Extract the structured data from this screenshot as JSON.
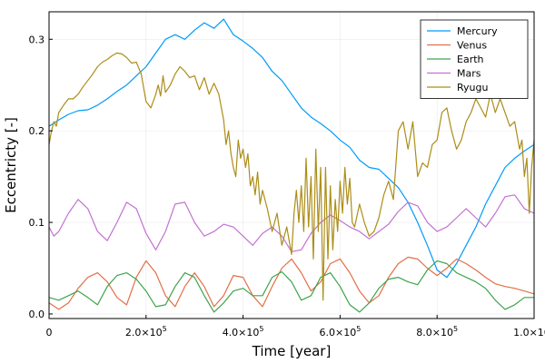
{
  "chart_data": {
    "type": "line",
    "xlabel": "Time [year]",
    "ylabel": "Eccentricty [-]",
    "xlim": [
      0,
      1000000
    ],
    "ylim": [
      -0.005,
      0.33
    ],
    "grid": true,
    "legend_position": "top-right",
    "x_ticks": [
      {
        "value": 0,
        "mant": "0",
        "exp": ""
      },
      {
        "value": 200000,
        "mant": "2.0×10",
        "exp": "5"
      },
      {
        "value": 400000,
        "mant": "4.0×10",
        "exp": "5"
      },
      {
        "value": 600000,
        "mant": "6.0×10",
        "exp": "5"
      },
      {
        "value": 800000,
        "mant": "8.0×10",
        "exp": "5"
      },
      {
        "value": 1000000,
        "mant": "1.0×10",
        "exp": "6"
      }
    ],
    "y_ticks": [
      {
        "value": 0.0,
        "label": "0.0"
      },
      {
        "value": 0.1,
        "label": "0.1"
      },
      {
        "value": 0.2,
        "label": "0.2"
      },
      {
        "value": 0.3,
        "label": "0.3"
      }
    ],
    "series": [
      {
        "name": "Mercury",
        "color": "#009af9",
        "x": [
          0,
          20000,
          40000,
          60000,
          80000,
          100000,
          120000,
          140000,
          160000,
          180000,
          200000,
          220000,
          240000,
          260000,
          280000,
          300000,
          320000,
          340000,
          360000,
          380000,
          400000,
          420000,
          440000,
          460000,
          480000,
          500000,
          520000,
          540000,
          560000,
          580000,
          600000,
          620000,
          640000,
          660000,
          680000,
          700000,
          720000,
          740000,
          760000,
          780000,
          800000,
          820000,
          840000,
          860000,
          880000,
          900000,
          920000,
          940000,
          960000,
          980000,
          1000000
        ],
        "y": [
          0.205,
          0.212,
          0.218,
          0.222,
          0.223,
          0.228,
          0.235,
          0.243,
          0.25,
          0.26,
          0.27,
          0.285,
          0.3,
          0.305,
          0.3,
          0.31,
          0.318,
          0.312,
          0.322,
          0.305,
          0.298,
          0.29,
          0.28,
          0.265,
          0.255,
          0.24,
          0.225,
          0.215,
          0.208,
          0.2,
          0.19,
          0.182,
          0.168,
          0.16,
          0.158,
          0.148,
          0.138,
          0.122,
          0.1,
          0.075,
          0.048,
          0.04,
          0.055,
          0.075,
          0.095,
          0.12,
          0.14,
          0.16,
          0.17,
          0.178,
          0.185
        ]
      },
      {
        "name": "Venus",
        "color": "#e26f46",
        "x": [
          0,
          20000,
          40000,
          60000,
          80000,
          100000,
          120000,
          140000,
          160000,
          180000,
          200000,
          220000,
          240000,
          260000,
          280000,
          300000,
          320000,
          340000,
          360000,
          380000,
          400000,
          420000,
          440000,
          460000,
          480000,
          500000,
          520000,
          540000,
          560000,
          580000,
          600000,
          620000,
          640000,
          660000,
          680000,
          700000,
          720000,
          740000,
          760000,
          780000,
          800000,
          820000,
          840000,
          860000,
          880000,
          900000,
          920000,
          940000,
          960000,
          980000,
          1000000
        ],
        "y": [
          0.012,
          0.005,
          0.012,
          0.028,
          0.04,
          0.045,
          0.035,
          0.018,
          0.01,
          0.04,
          0.058,
          0.045,
          0.02,
          0.008,
          0.03,
          0.045,
          0.03,
          0.008,
          0.02,
          0.042,
          0.04,
          0.02,
          0.008,
          0.03,
          0.05,
          0.06,
          0.045,
          0.025,
          0.035,
          0.055,
          0.06,
          0.045,
          0.025,
          0.012,
          0.02,
          0.04,
          0.055,
          0.062,
          0.06,
          0.05,
          0.042,
          0.05,
          0.06,
          0.055,
          0.048,
          0.04,
          0.033,
          0.03,
          0.028,
          0.025,
          0.022
        ]
      },
      {
        "name": "Earth",
        "color": "#3da44d",
        "x": [
          0,
          20000,
          40000,
          60000,
          80000,
          100000,
          120000,
          140000,
          160000,
          180000,
          200000,
          220000,
          240000,
          260000,
          280000,
          300000,
          320000,
          340000,
          360000,
          380000,
          400000,
          420000,
          440000,
          460000,
          480000,
          500000,
          520000,
          540000,
          560000,
          580000,
          600000,
          620000,
          640000,
          660000,
          680000,
          700000,
          720000,
          740000,
          760000,
          780000,
          800000,
          820000,
          840000,
          860000,
          880000,
          900000,
          920000,
          940000,
          960000,
          980000,
          1000000
        ],
        "y": [
          0.018,
          0.015,
          0.02,
          0.025,
          0.018,
          0.01,
          0.03,
          0.042,
          0.045,
          0.038,
          0.025,
          0.008,
          0.01,
          0.03,
          0.045,
          0.04,
          0.02,
          0.002,
          0.012,
          0.025,
          0.028,
          0.02,
          0.02,
          0.04,
          0.046,
          0.035,
          0.015,
          0.02,
          0.04,
          0.045,
          0.03,
          0.01,
          0.002,
          0.012,
          0.028,
          0.038,
          0.04,
          0.035,
          0.032,
          0.048,
          0.058,
          0.055,
          0.045,
          0.04,
          0.035,
          0.028,
          0.015,
          0.005,
          0.01,
          0.018,
          0.018
        ]
      },
      {
        "name": "Mars",
        "color": "#c271d2",
        "x": [
          0,
          10000,
          20000,
          40000,
          60000,
          80000,
          100000,
          120000,
          140000,
          160000,
          180000,
          200000,
          220000,
          240000,
          260000,
          280000,
          300000,
          320000,
          340000,
          360000,
          380000,
          400000,
          420000,
          440000,
          460000,
          480000,
          500000,
          520000,
          540000,
          560000,
          580000,
          600000,
          620000,
          640000,
          660000,
          680000,
          700000,
          720000,
          740000,
          760000,
          780000,
          800000,
          820000,
          840000,
          860000,
          880000,
          900000,
          920000,
          940000,
          960000,
          980000,
          1000000
        ],
        "y": [
          0.095,
          0.085,
          0.09,
          0.11,
          0.125,
          0.115,
          0.09,
          0.08,
          0.1,
          0.122,
          0.115,
          0.088,
          0.07,
          0.09,
          0.12,
          0.122,
          0.1,
          0.085,
          0.09,
          0.098,
          0.095,
          0.085,
          0.075,
          0.088,
          0.095,
          0.085,
          0.068,
          0.07,
          0.088,
          0.1,
          0.108,
          0.102,
          0.095,
          0.09,
          0.082,
          0.09,
          0.098,
          0.112,
          0.122,
          0.118,
          0.1,
          0.09,
          0.095,
          0.105,
          0.115,
          0.105,
          0.095,
          0.11,
          0.128,
          0.13,
          0.115,
          0.11
        ]
      },
      {
        "name": "Ryugu",
        "color": "#ac8d18",
        "x": [
          0,
          5000,
          10000,
          15000,
          20000,
          30000,
          40000,
          50000,
          60000,
          70000,
          80000,
          90000,
          100000,
          110000,
          120000,
          130000,
          140000,
          150000,
          160000,
          170000,
          180000,
          190000,
          200000,
          210000,
          220000,
          225000,
          230000,
          235000,
          240000,
          250000,
          260000,
          270000,
          280000,
          290000,
          300000,
          310000,
          320000,
          330000,
          340000,
          350000,
          360000,
          365000,
          370000,
          375000,
          380000,
          385000,
          390000,
          395000,
          400000,
          405000,
          410000,
          415000,
          420000,
          425000,
          430000,
          435000,
          440000,
          450000,
          460000,
          470000,
          480000,
          490000,
          500000,
          505000,
          510000,
          515000,
          520000,
          525000,
          530000,
          535000,
          540000,
          545000,
          550000,
          555000,
          560000,
          565000,
          570000,
          575000,
          580000,
          585000,
          590000,
          595000,
          600000,
          605000,
          610000,
          615000,
          620000,
          625000,
          630000,
          640000,
          650000,
          660000,
          670000,
          680000,
          690000,
          700000,
          710000,
          720000,
          730000,
          740000,
          750000,
          760000,
          770000,
          780000,
          790000,
          800000,
          810000,
          820000,
          830000,
          840000,
          850000,
          860000,
          870000,
          880000,
          890000,
          900000,
          910000,
          920000,
          930000,
          940000,
          950000,
          960000,
          970000,
          975000,
          980000,
          985000,
          990000,
          995000,
          1000000
        ],
        "y": [
          0.185,
          0.2,
          0.21,
          0.205,
          0.22,
          0.228,
          0.235,
          0.235,
          0.24,
          0.248,
          0.255,
          0.262,
          0.27,
          0.275,
          0.278,
          0.282,
          0.285,
          0.284,
          0.28,
          0.274,
          0.275,
          0.262,
          0.232,
          0.225,
          0.24,
          0.25,
          0.238,
          0.26,
          0.242,
          0.25,
          0.262,
          0.27,
          0.265,
          0.258,
          0.26,
          0.245,
          0.258,
          0.24,
          0.252,
          0.24,
          0.212,
          0.185,
          0.2,
          0.175,
          0.16,
          0.15,
          0.19,
          0.17,
          0.18,
          0.16,
          0.175,
          0.14,
          0.15,
          0.13,
          0.155,
          0.12,
          0.135,
          0.115,
          0.09,
          0.11,
          0.075,
          0.095,
          0.065,
          0.11,
          0.135,
          0.1,
          0.14,
          0.09,
          0.17,
          0.095,
          0.15,
          0.06,
          0.18,
          0.09,
          0.16,
          0.015,
          0.16,
          0.06,
          0.14,
          0.07,
          0.125,
          0.09,
          0.145,
          0.11,
          0.16,
          0.12,
          0.148,
          0.1,
          0.095,
          0.12,
          0.1,
          0.085,
          0.09,
          0.105,
          0.13,
          0.145,
          0.125,
          0.2,
          0.21,
          0.18,
          0.21,
          0.15,
          0.165,
          0.16,
          0.185,
          0.19,
          0.22,
          0.225,
          0.2,
          0.18,
          0.19,
          0.21,
          0.22,
          0.235,
          0.225,
          0.215,
          0.24,
          0.22,
          0.235,
          0.22,
          0.205,
          0.21,
          0.18,
          0.19,
          0.15,
          0.17,
          0.11,
          0.16,
          0.19
        ]
      }
    ]
  }
}
